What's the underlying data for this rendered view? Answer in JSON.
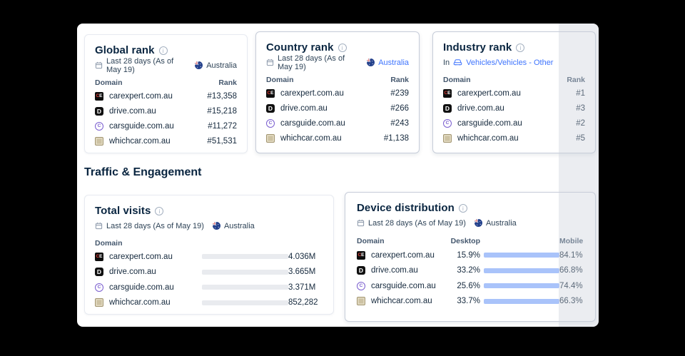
{
  "accent_blue": "#3e74fe",
  "section_heading": "Traffic & Engagement",
  "favicon_letters": {
    "carexpert_c": "C",
    "carexpert_e": "E",
    "drive": "D",
    "carsguide": "C"
  },
  "global_rank": {
    "title": "Global rank",
    "period": "Last 28 days (As of May 19)",
    "country": "Australia",
    "col_domain": "Domain",
    "col_rank": "Rank",
    "rows": [
      {
        "domain": "carexpert.com.au",
        "rank": "#13,358"
      },
      {
        "domain": "drive.com.au",
        "rank": "#15,218"
      },
      {
        "domain": "carsguide.com.au",
        "rank": "#11,272"
      },
      {
        "domain": "whichcar.com.au",
        "rank": "#51,531"
      }
    ]
  },
  "country_rank": {
    "title": "Country rank",
    "period": "Last 28 days (As of May 19)",
    "country": "Australia",
    "col_domain": "Domain",
    "col_rank": "Rank",
    "rows": [
      {
        "domain": "carexpert.com.au",
        "rank": "#239"
      },
      {
        "domain": "drive.com.au",
        "rank": "#266"
      },
      {
        "domain": "carsguide.com.au",
        "rank": "#243"
      },
      {
        "domain": "whichcar.com.au",
        "rank": "#1,138"
      }
    ]
  },
  "industry_rank": {
    "title": "Industry rank",
    "prefix": "In",
    "industry": "Vehicles/Vehicles - Other",
    "col_domain": "Domain",
    "col_rank": "Rank",
    "rows": [
      {
        "domain": "carexpert.com.au",
        "rank": "#1"
      },
      {
        "domain": "drive.com.au",
        "rank": "#3"
      },
      {
        "domain": "carsguide.com.au",
        "rank": "#2"
      },
      {
        "domain": "whichcar.com.au",
        "rank": "#5"
      }
    ]
  },
  "total_visits": {
    "title": "Total visits",
    "period": "Last 28 days (As of May 19)",
    "country": "Australia",
    "col_domain": "Domain",
    "rows": [
      {
        "domain": "carexpert.com.au",
        "value": "4.036M",
        "bar_pct": 33.9,
        "color": "#47517d"
      },
      {
        "domain": "drive.com.au",
        "value": "3.665M",
        "bar_pct": 30.7,
        "color": "#ef7d2c"
      },
      {
        "domain": "carsguide.com.au",
        "value": "3.371M",
        "bar_pct": 28.3,
        "color": "#47bd8d"
      },
      {
        "domain": "whichcar.com.au",
        "value": "852,282",
        "bar_pct": 7.1,
        "color": "#f5bd4a"
      }
    ]
  },
  "device_distribution": {
    "title": "Device distribution",
    "period": "Last 28 days (As of May 19)",
    "country": "Australia",
    "col_domain": "Domain",
    "col_desktop": "Desktop",
    "col_mobile": "Mobile",
    "desktop_color": "#4a78f3",
    "mobile_color": "#a9c3fa",
    "rows": [
      {
        "domain": "carexpert.com.au",
        "desktop": "15.9%",
        "mobile": "84.1%",
        "desktop_pct": 15.9
      },
      {
        "domain": "drive.com.au",
        "desktop": "33.2%",
        "mobile": "66.8%",
        "desktop_pct": 33.2
      },
      {
        "domain": "carsguide.com.au",
        "desktop": "25.6%",
        "mobile": "74.4%",
        "desktop_pct": 25.6
      },
      {
        "domain": "whichcar.com.au",
        "desktop": "33.7%",
        "mobile": "66.3%",
        "desktop_pct": 33.7
      }
    ]
  }
}
